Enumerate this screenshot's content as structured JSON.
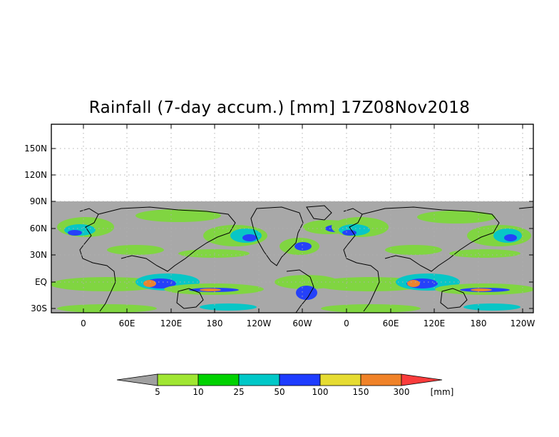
{
  "title": "Rainfall (7-day accum.) [mm] 17Z08Nov2018",
  "map": {
    "y_axis_labels": [
      "150N",
      "120N",
      "90N",
      "60N",
      "30N",
      "EQ",
      "30S"
    ],
    "x_axis_labels": [
      "0",
      "60E",
      "120E",
      "180",
      "120W",
      "60W",
      "0",
      "60E",
      "120E",
      "180",
      "120W"
    ],
    "ocean_color": "#a8a8a8",
    "coastline_color": "#000000"
  },
  "colorbar": {
    "labels": [
      "5",
      "10",
      "25",
      "50",
      "100",
      "150",
      "300"
    ],
    "unit": "[mm]",
    "colors": [
      "#a0a0a0",
      "#a0e632",
      "#00d200",
      "#00c8c8",
      "#1e3cff",
      "#e6dc32",
      "#f08228",
      "#fa3c3c"
    ]
  }
}
